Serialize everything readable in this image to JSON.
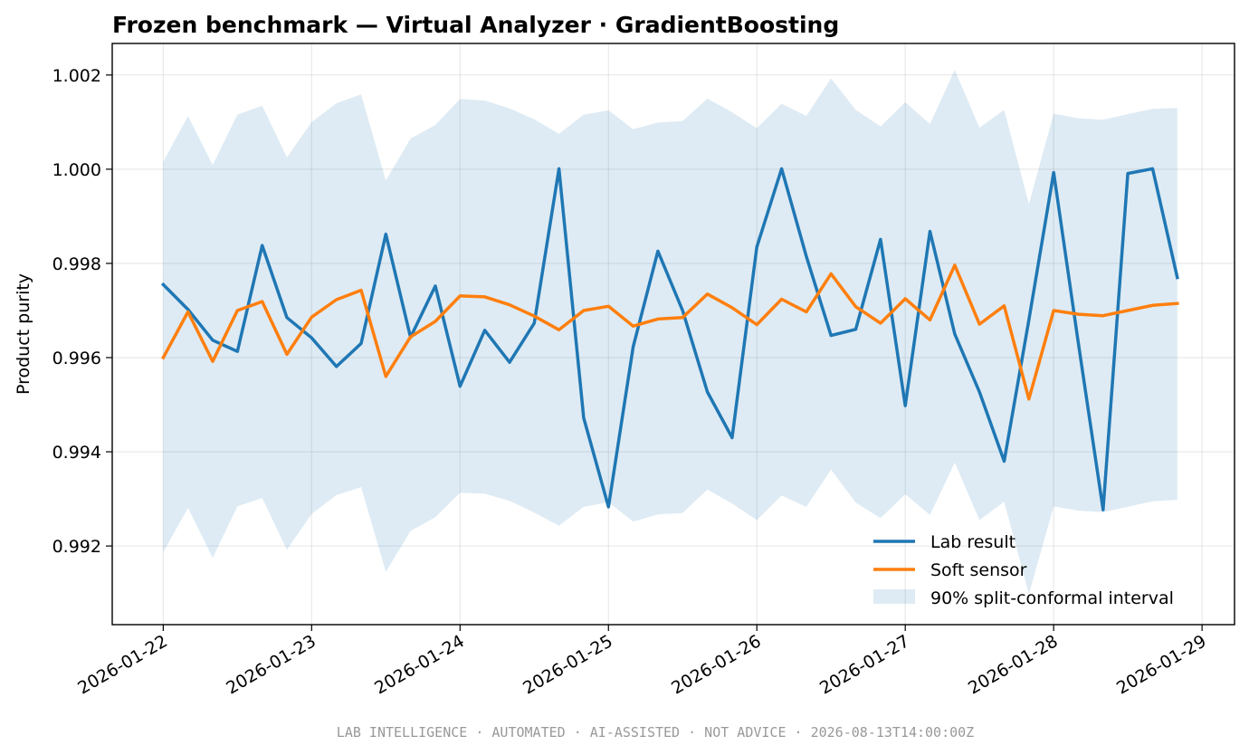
{
  "chart_data": {
    "type": "line",
    "title": "Frozen benchmark — Virtual Analyzer · GradientBoosting",
    "xlabel": "",
    "ylabel": "Product purity",
    "x_ticks": [
      "2026-01-22",
      "2026-01-23",
      "2026-01-24",
      "2026-01-25",
      "2026-01-26",
      "2026-01-27",
      "2026-01-28",
      "2026-01-29"
    ],
    "y_ticks": [
      "0.992",
      "0.994",
      "0.996",
      "0.998",
      "1.000",
      "1.002"
    ],
    "ylim": [
      0.99033,
      1.00267
    ],
    "xlim": [
      "2026-01-21 15:45",
      "2026-01-29 05:15"
    ],
    "grid": true,
    "legend_position": "lower-right",
    "x": [
      "2026-01-22 00:00",
      "2026-01-22 04:00",
      "2026-01-22 08:00",
      "2026-01-22 12:00",
      "2026-01-22 16:00",
      "2026-01-22 20:00",
      "2026-01-23 00:00",
      "2026-01-23 04:00",
      "2026-01-23 08:00",
      "2026-01-23 12:00",
      "2026-01-23 16:00",
      "2026-01-23 20:00",
      "2026-01-24 00:00",
      "2026-01-24 04:00",
      "2026-01-24 08:00",
      "2026-01-24 12:00",
      "2026-01-24 16:00",
      "2026-01-24 20:00",
      "2026-01-25 00:00",
      "2026-01-25 04:00",
      "2026-01-25 08:00",
      "2026-01-25 12:00",
      "2026-01-25 16:00",
      "2026-01-25 20:00",
      "2026-01-26 00:00",
      "2026-01-26 04:00",
      "2026-01-26 08:00",
      "2026-01-26 12:00",
      "2026-01-26 16:00",
      "2026-01-26 20:00",
      "2026-01-27 00:00",
      "2026-01-27 04:00",
      "2026-01-27 08:00",
      "2026-01-27 12:00",
      "2026-01-27 16:00",
      "2026-01-27 20:00",
      "2026-01-28 00:00",
      "2026-01-28 04:00",
      "2026-01-28 08:00",
      "2026-01-28 12:00",
      "2026-01-28 16:00",
      "2026-01-28 20:00"
    ],
    "series": [
      {
        "name": "Lab result",
        "color": "#1f77b4",
        "values": [
          0.99755,
          0.99702,
          0.99637,
          0.99613,
          0.99838,
          0.99685,
          0.99642,
          0.99581,
          0.9963,
          0.99862,
          0.99643,
          0.99752,
          0.99539,
          0.99658,
          0.9959,
          0.99673,
          1.00001,
          0.99472,
          0.99283,
          0.99623,
          0.99826,
          0.997,
          0.99527,
          0.9943,
          0.99835,
          1.00001,
          0.99815,
          0.99647,
          0.9966,
          0.99851,
          0.99498,
          0.99868,
          0.9965,
          0.99527,
          0.9938,
          0.9968,
          0.99993,
          0.9963,
          0.99277,
          0.99991,
          1.00001,
          0.9977
        ]
      },
      {
        "name": "Soft sensor",
        "color": "#ff7f0e",
        "values": [
          0.996,
          0.99697,
          0.99592,
          0.997,
          0.99719,
          0.99607,
          0.99686,
          0.99723,
          0.99743,
          0.9956,
          0.99644,
          0.99677,
          0.99731,
          0.99729,
          0.99712,
          0.99688,
          0.99659,
          0.997,
          0.99709,
          0.99667,
          0.99682,
          0.99685,
          0.99735,
          0.99706,
          0.9967,
          0.99724,
          0.99697,
          0.99778,
          0.99708,
          0.99673,
          0.99725,
          0.9968,
          0.99796,
          0.99671,
          0.9971,
          0.99512,
          0.997,
          0.99692,
          0.99689,
          0.997,
          0.99711,
          0.99715
        ]
      }
    ],
    "interval": {
      "name": "90% split-conformal interval",
      "color": "#1f77b4",
      "opacity": 0.15,
      "upper": [
        1.00016,
        1.00113,
        1.00009,
        1.00116,
        1.00135,
        1.00025,
        1.001,
        1.0014,
        1.00159,
        0.99976,
        1.00065,
        1.00094,
        1.00149,
        1.00146,
        1.00129,
        1.00106,
        1.00075,
        1.00116,
        1.00125,
        1.00085,
        1.00099,
        1.00102,
        1.0015,
        1.00121,
        1.00087,
        1.00139,
        1.00113,
        1.00193,
        1.00126,
        1.00091,
        1.00142,
        1.00096,
        1.00211,
        1.00088,
        1.00126,
        0.99926,
        1.00118,
        1.00108,
        1.00105,
        1.00117,
        1.00128,
        1.0013
      ],
      "lower": [
        0.99187,
        0.99281,
        0.99175,
        0.99284,
        0.99302,
        0.99192,
        0.99268,
        0.99308,
        0.99325,
        0.99145,
        0.99232,
        0.99261,
        0.99313,
        0.99311,
        0.99296,
        0.99271,
        0.99243,
        0.99283,
        0.99293,
        0.99252,
        0.99267,
        0.9927,
        0.9932,
        0.9929,
        0.99255,
        0.99307,
        0.99283,
        0.99362,
        0.99292,
        0.99259,
        0.9931,
        0.99266,
        0.99377,
        0.99255,
        0.99294,
        0.99098,
        0.99284,
        0.99275,
        0.99272,
        0.99283,
        0.99295,
        0.99298
      ]
    },
    "legend": [
      "Lab result",
      "Soft sensor",
      "90% split-conformal interval"
    ]
  },
  "footer": "LAB INTELLIGENCE · AUTOMATED · AI-ASSISTED · NOT ADVICE · 2026-08-13T14:00:00Z"
}
